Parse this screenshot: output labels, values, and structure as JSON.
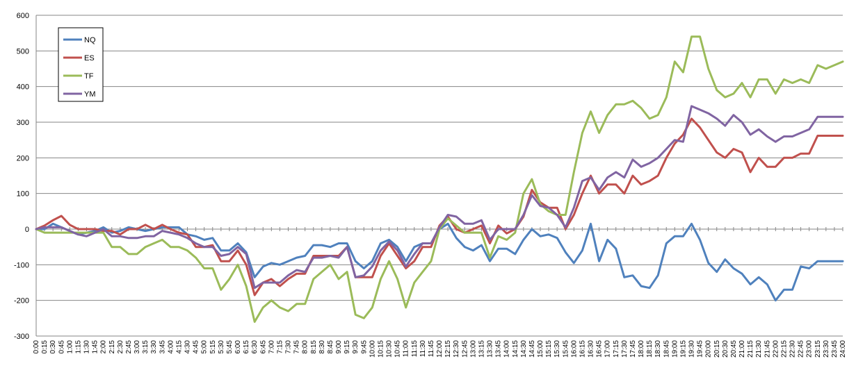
{
  "chart_data": {
    "type": "line",
    "title": "",
    "xlabel": "",
    "ylabel": "",
    "ylim": [
      -300,
      600
    ],
    "yticks": [
      600,
      500,
      400,
      300,
      200,
      100,
      0,
      -100,
      -200,
      -300
    ],
    "grid": true,
    "legend_position": "top-left",
    "x": [
      "0:00",
      "0:15",
      "0:30",
      "0:45",
      "1:00",
      "1:15",
      "1:30",
      "1:45",
      "2:00",
      "2:15",
      "2:30",
      "2:45",
      "3:00",
      "3:15",
      "3:30",
      "3:45",
      "4:00",
      "4:15",
      "4:30",
      "4:45",
      "5:00",
      "5:15",
      "5:30",
      "5:45",
      "6:00",
      "6:15",
      "6:30",
      "6:45",
      "7:00",
      "7:15",
      "7:30",
      "7:45",
      "8:00",
      "8:15",
      "8:30",
      "8:45",
      "9:00",
      "9:15",
      "9:30",
      "9:45",
      "10:00",
      "10:15",
      "10:30",
      "10:45",
      "11:00",
      "11:15",
      "11:30",
      "11:45",
      "12:00",
      "12:15",
      "12:30",
      "12:45",
      "13:00",
      "13:15",
      "13:30",
      "13:45",
      "14:00",
      "14:15",
      "14:30",
      "14:45",
      "15:00",
      "15:15",
      "15:30",
      "15:45",
      "16:00",
      "16:15",
      "16:30",
      "16:45",
      "17:00",
      "17:15",
      "17:30",
      "17:45",
      "18:00",
      "18:15",
      "18:30",
      "18:45",
      "19:00",
      "19:15",
      "19:30",
      "19:45",
      "20:00",
      "20:15",
      "20:30",
      "20:45",
      "21:00",
      "21:15",
      "21:30",
      "21:45",
      "22:00",
      "22:15",
      "22:30",
      "22:45",
      "23:00",
      "23:15",
      "23:30",
      "23:45",
      "24:00"
    ],
    "series": [
      {
        "name": "NQ",
        "color": "#4f81bd",
        "values": [
          0,
          0,
          15,
          5,
          -5,
          -15,
          -10,
          -5,
          5,
          -10,
          -5,
          5,
          0,
          -5,
          0,
          5,
          5,
          5,
          -15,
          -20,
          -30,
          -25,
          -60,
          -60,
          -40,
          -65,
          -135,
          -105,
          -95,
          -100,
          -90,
          -80,
          -75,
          -45,
          -45,
          -50,
          -40,
          -40,
          -90,
          -110,
          -90,
          -40,
          -30,
          -50,
          -90,
          -50,
          -40,
          -40,
          0,
          15,
          -25,
          -50,
          -60,
          -45,
          -90,
          -55,
          -55,
          -70,
          -30,
          0,
          -20,
          -15,
          -25,
          -65,
          -95,
          -60,
          15,
          -90,
          -30,
          -55,
          -135,
          -130,
          -160,
          -165,
          -130,
          -40,
          -20,
          -20,
          15,
          -30,
          -95,
          -120,
          -85,
          -110,
          -125,
          -155,
          -135,
          -155,
          -200,
          -170,
          -170,
          -105,
          -110,
          -90,
          -90,
          -90,
          -90
        ]
      },
      {
        "name": "ES",
        "color": "#c0504d",
        "values": [
          0,
          10,
          25,
          37,
          12,
          0,
          0,
          0,
          -5,
          -5,
          -15,
          0,
          0,
          12,
          0,
          12,
          0,
          -10,
          -15,
          -50,
          -50,
          -45,
          -90,
          -90,
          -60,
          -100,
          -185,
          -150,
          -140,
          -160,
          -140,
          -125,
          -125,
          -75,
          -75,
          -75,
          -75,
          -50,
          -135,
          -135,
          -135,
          -75,
          -40,
          -75,
          -110,
          -90,
          -50,
          -50,
          10,
          35,
          0,
          -10,
          0,
          10,
          -40,
          10,
          -12,
          0,
          35,
          110,
          75,
          60,
          60,
          0,
          40,
          100,
          150,
          100,
          125,
          125,
          100,
          150,
          125,
          135,
          150,
          200,
          240,
          265,
          310,
          285,
          250,
          215,
          200,
          225,
          215,
          160,
          200,
          175,
          175,
          200,
          200,
          212,
          212,
          262,
          262,
          262,
          262
        ]
      },
      {
        "name": "TF",
        "color": "#9bbb59",
        "values": [
          0,
          -10,
          -10,
          -10,
          -10,
          -10,
          -10,
          -10,
          -10,
          -50,
          -50,
          -70,
          -70,
          -50,
          -40,
          -30,
          -50,
          -50,
          -60,
          -80,
          -110,
          -110,
          -170,
          -140,
          -100,
          -160,
          -260,
          -220,
          -200,
          -220,
          -230,
          -210,
          -210,
          -140,
          -120,
          -100,
          -140,
          -120,
          -240,
          -250,
          -220,
          -140,
          -90,
          -140,
          -220,
          -150,
          -120,
          -90,
          0,
          30,
          10,
          -10,
          -10,
          -10,
          -80,
          -20,
          -30,
          -10,
          100,
          140,
          70,
          50,
          40,
          40,
          160,
          270,
          330,
          270,
          320,
          350,
          350,
          360,
          340,
          310,
          320,
          370,
          470,
          440,
          540,
          540,
          450,
          390,
          370,
          380,
          410,
          370,
          420,
          420,
          380,
          420,
          410,
          420,
          410,
          460,
          450,
          460,
          470
        ]
      },
      {
        "name": "YM",
        "color": "#8064a2",
        "values": [
          0,
          5,
          5,
          5,
          -5,
          -15,
          -20,
          -10,
          0,
          -20,
          -20,
          -25,
          -25,
          -20,
          -20,
          -5,
          -10,
          -15,
          -25,
          -40,
          -50,
          -50,
          -75,
          -70,
          -50,
          -70,
          -165,
          -150,
          -150,
          -150,
          -130,
          -115,
          -120,
          -80,
          -80,
          -75,
          -80,
          -50,
          -135,
          -130,
          -105,
          -60,
          -35,
          -60,
          -105,
          -70,
          -40,
          -40,
          5,
          40,
          35,
          15,
          15,
          25,
          -30,
          0,
          0,
          0,
          40,
          95,
          65,
          60,
          40,
          5,
          60,
          135,
          145,
          110,
          145,
          160,
          145,
          195,
          175,
          185,
          200,
          225,
          250,
          245,
          345,
          335,
          325,
          310,
          290,
          320,
          300,
          265,
          280,
          260,
          245,
          260,
          260,
          270,
          280,
          315,
          315,
          315,
          315
        ]
      }
    ]
  }
}
